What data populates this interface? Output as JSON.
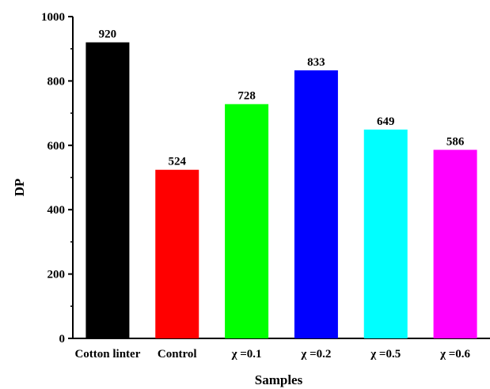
{
  "chart_data": {
    "type": "bar",
    "title": "",
    "xlabel": "Samples",
    "ylabel": "DP",
    "ylim": [
      0,
      1000
    ],
    "yticks": [
      0,
      200,
      400,
      600,
      800,
      1000
    ],
    "grid": false,
    "categories": [
      "Cotton linter",
      "Control",
      "χ =0.1",
      "χ =0.2",
      "χ =0.5",
      "χ =0.6"
    ],
    "values": [
      920,
      524,
      728,
      833,
      649,
      586
    ],
    "value_labels": [
      "920",
      "524",
      "728",
      "833",
      "649",
      "586"
    ],
    "colors": [
      "#000000",
      "#ff0000",
      "#00ff00",
      "#0000ff",
      "#00ffff",
      "#ff00ff"
    ]
  }
}
